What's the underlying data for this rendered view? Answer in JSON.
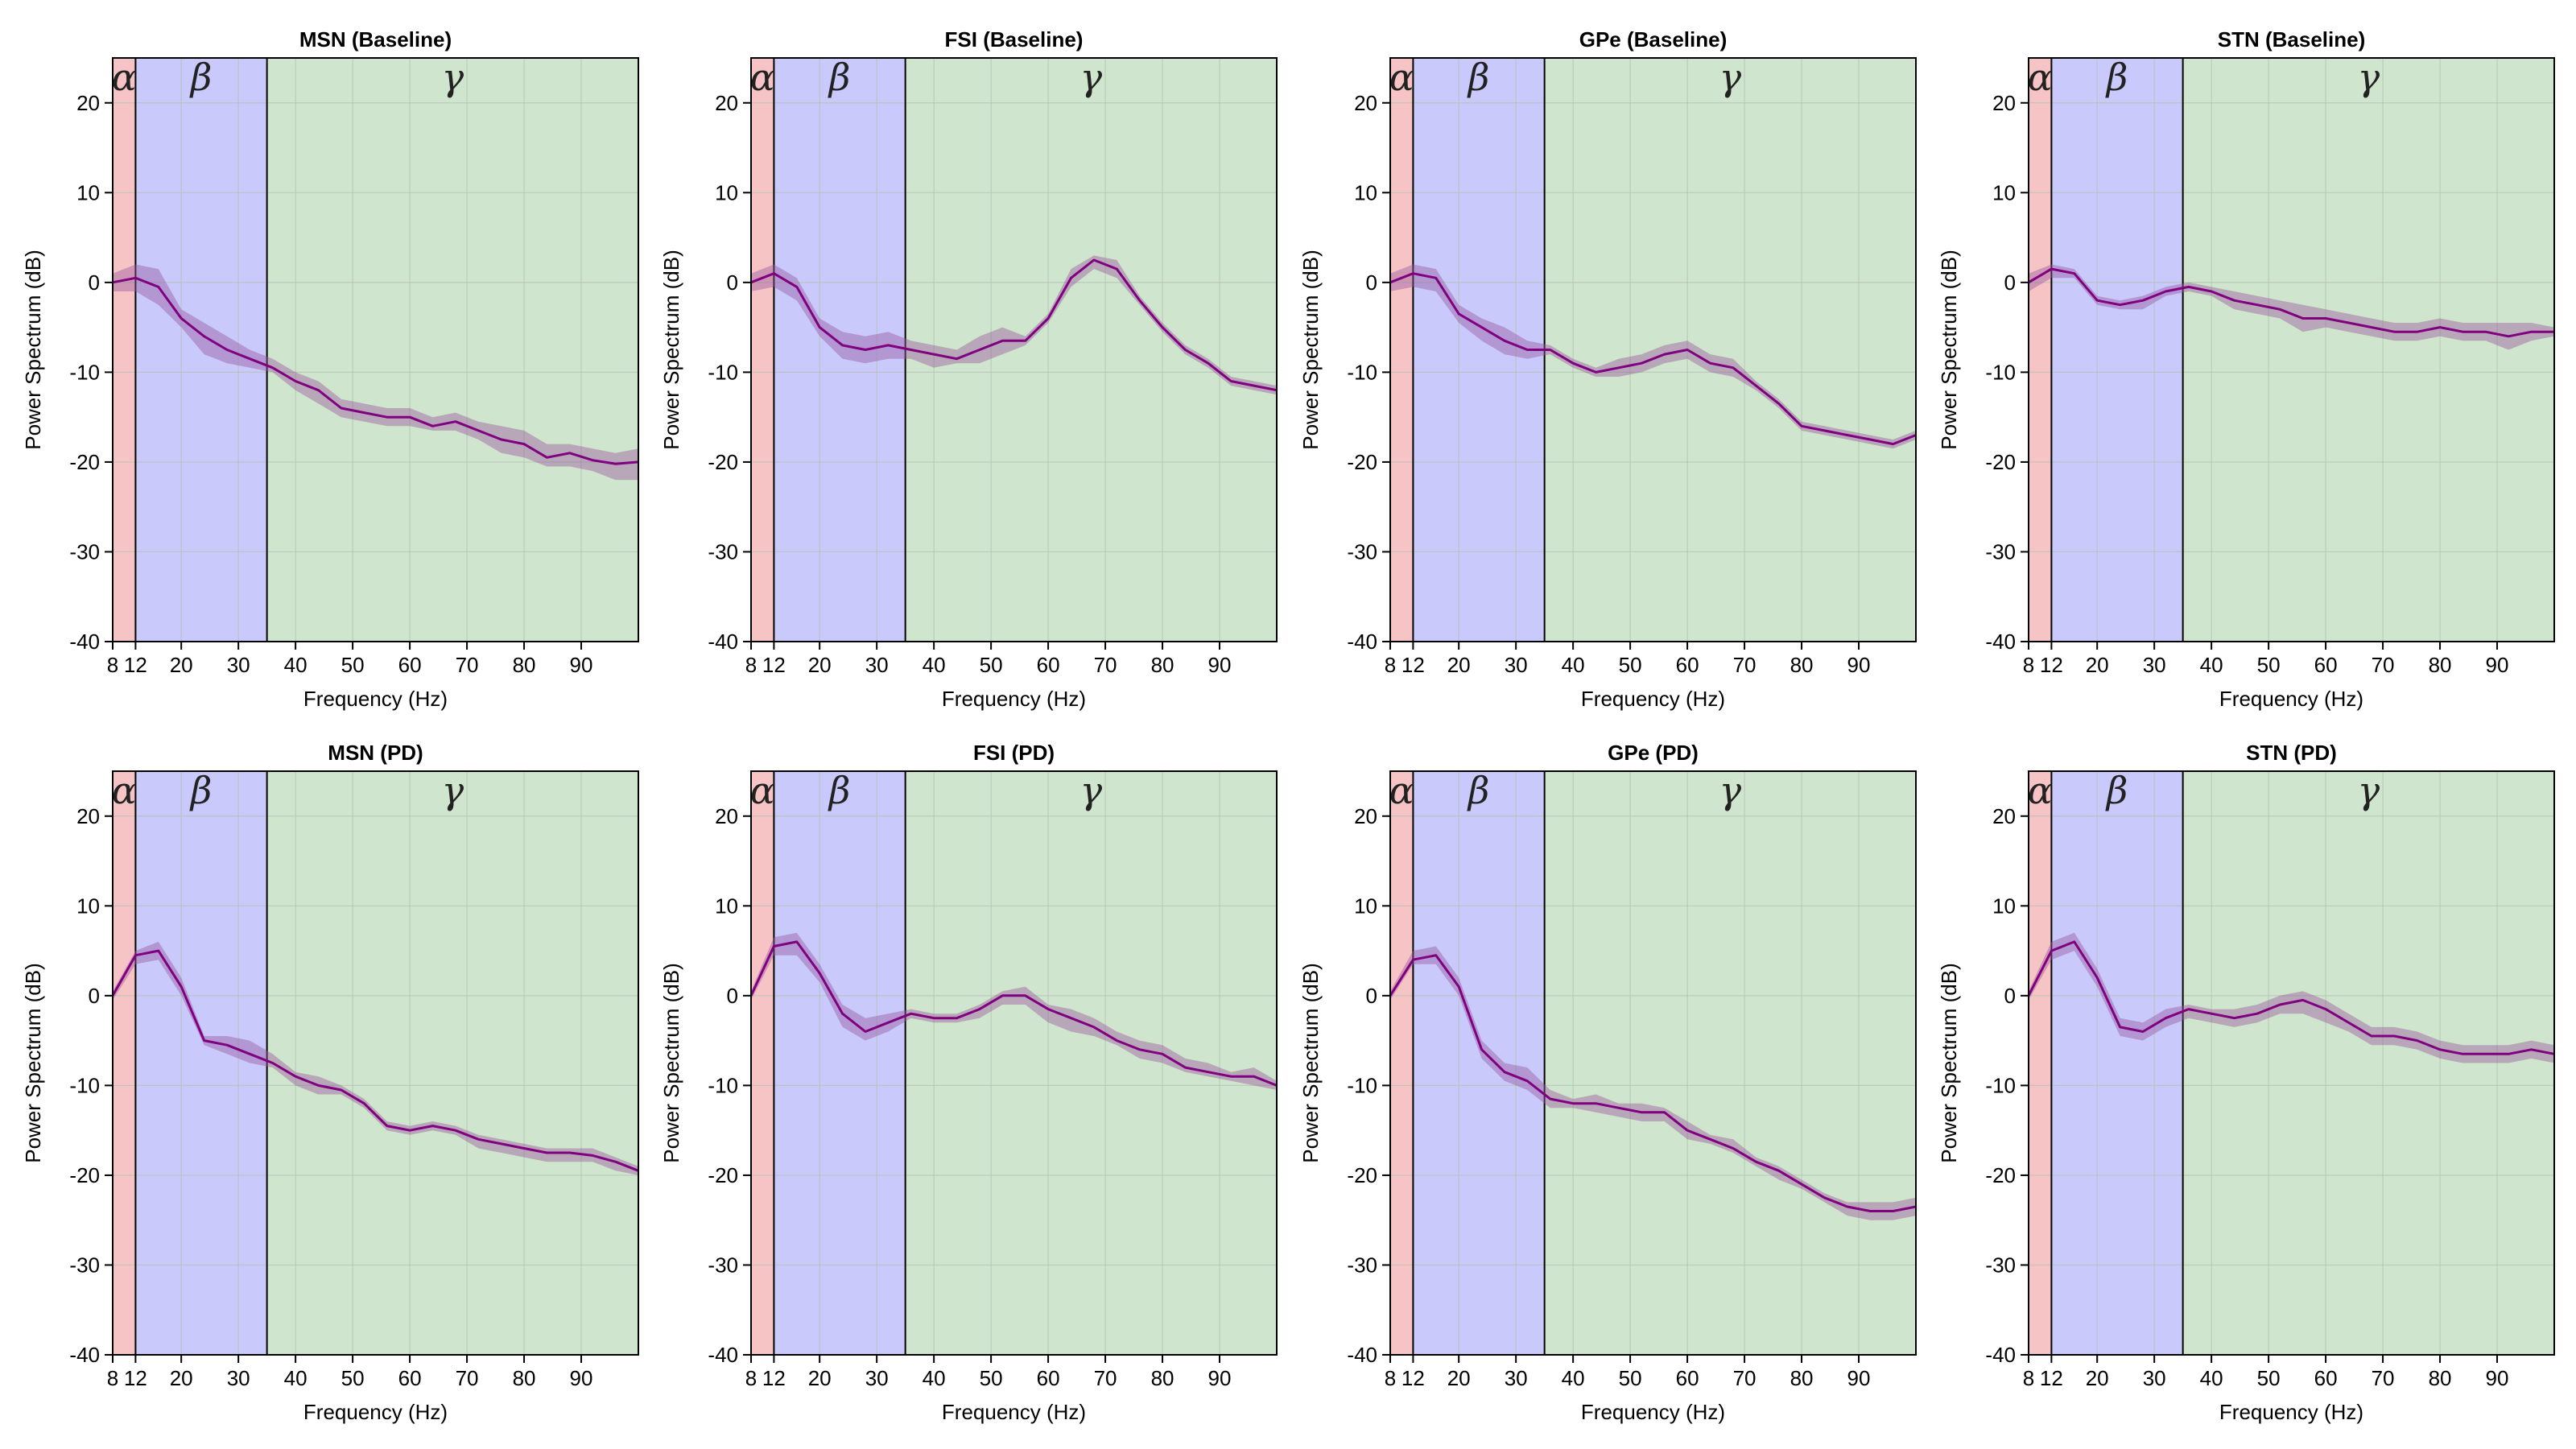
{
  "colors": {
    "alpha_band": "#f7c4c6",
    "beta_band": "#c9c9fb",
    "gamma_band": "#cfe5cd",
    "line": "#800080",
    "ci_fill": "#9a5aa0",
    "grid": "#b2c2b2"
  },
  "chart_data": [
    {
      "type": "line",
      "title": "MSN (Baseline)",
      "xlabel": "Frequency (Hz)",
      "ylabel": "Power Spectrum (dB)",
      "xlim": [
        8,
        100
      ],
      "ylim": [
        -40,
        25
      ],
      "xticks": [
        8,
        12,
        20,
        30,
        40,
        50,
        60,
        70,
        80,
        90
      ],
      "yticks": [
        -40,
        -30,
        -20,
        -10,
        0,
        10,
        20
      ],
      "grid": true,
      "bands": [
        {
          "label": "α",
          "from": 8,
          "to": 12
        },
        {
          "label": "β",
          "from": 12,
          "to": 35
        },
        {
          "label": "γ",
          "from": 35,
          "to": 100
        }
      ],
      "x": [
        8,
        12,
        16,
        20,
        24,
        28,
        32,
        36,
        40,
        44,
        48,
        52,
        56,
        60,
        64,
        68,
        72,
        76,
        80,
        84,
        88,
        92,
        96,
        100
      ],
      "y": [
        0,
        0.5,
        -0.5,
        -4,
        -6,
        -7.5,
        -8.5,
        -9.5,
        -11,
        -12,
        -14,
        -14.5,
        -15,
        -15,
        -16,
        -15.5,
        -16.5,
        -17.5,
        -18,
        -19.5,
        -19,
        -19.8,
        -20.2,
        -20
      ],
      "ci_lower": [
        -1,
        -1,
        -2.5,
        -5,
        -8,
        -9,
        -9.5,
        -10,
        -12,
        -13.5,
        -15,
        -15.5,
        -16,
        -16,
        -16.5,
        -16.5,
        -17.5,
        -19,
        -19.5,
        -20.5,
        -20.5,
        -21,
        -22,
        -22
      ],
      "ci_upper": [
        1,
        2,
        1.5,
        -3,
        -4.5,
        -6,
        -7.5,
        -8.5,
        -10,
        -11,
        -13,
        -13.5,
        -14,
        -14,
        -15,
        -14.5,
        -15.5,
        -16,
        -16.5,
        -18,
        -18,
        -18.5,
        -19,
        -18.5
      ]
    },
    {
      "type": "line",
      "title": "FSI (Baseline)",
      "xlabel": "Frequency (Hz)",
      "ylabel": "Power Spectrum (dB)",
      "xlim": [
        8,
        100
      ],
      "ylim": [
        -40,
        25
      ],
      "xticks": [
        8,
        12,
        20,
        30,
        40,
        50,
        60,
        70,
        80,
        90
      ],
      "yticks": [
        -40,
        -30,
        -20,
        -10,
        0,
        10,
        20
      ],
      "grid": true,
      "bands": [
        {
          "label": "α",
          "from": 8,
          "to": 12
        },
        {
          "label": "β",
          "from": 12,
          "to": 35
        },
        {
          "label": "γ",
          "from": 35,
          "to": 100
        }
      ],
      "x": [
        8,
        12,
        16,
        20,
        24,
        28,
        32,
        36,
        40,
        44,
        48,
        52,
        56,
        60,
        64,
        68,
        72,
        76,
        80,
        84,
        88,
        92,
        96,
        100
      ],
      "y": [
        0,
        1,
        -0.5,
        -5,
        -7,
        -7.5,
        -7,
        -7.5,
        -8,
        -8.5,
        -7.5,
        -6.5,
        -6.5,
        -4,
        0.5,
        2.5,
        1.5,
        -2,
        -5,
        -7.5,
        -9,
        -11,
        -11.5,
        -12
      ],
      "ci_lower": [
        -1,
        -0.5,
        -2,
        -6,
        -8.5,
        -9,
        -8.5,
        -8.5,
        -9.5,
        -9,
        -9,
        -8,
        -7,
        -4.5,
        -0.5,
        1.5,
        0.5,
        -2.5,
        -5.5,
        -8,
        -9.5,
        -11.5,
        -12,
        -12.5
      ],
      "ci_upper": [
        1,
        2,
        0.5,
        -4,
        -5.5,
        -6,
        -5.5,
        -6.5,
        -7,
        -7.5,
        -6,
        -5,
        -6,
        -3.5,
        1.5,
        3,
        2.5,
        -1.5,
        -4.5,
        -7,
        -8.5,
        -10.5,
        -11,
        -11.5
      ]
    },
    {
      "type": "line",
      "title": "GPe (Baseline)",
      "xlabel": "Frequency (Hz)",
      "ylabel": "Power Spectrum (dB)",
      "xlim": [
        8,
        100
      ],
      "ylim": [
        -40,
        25
      ],
      "xticks": [
        8,
        12,
        20,
        30,
        40,
        50,
        60,
        70,
        80,
        90
      ],
      "yticks": [
        -40,
        -30,
        -20,
        -10,
        0,
        10,
        20
      ],
      "grid": true,
      "bands": [
        {
          "label": "α",
          "from": 8,
          "to": 12
        },
        {
          "label": "β",
          "from": 12,
          "to": 35
        },
        {
          "label": "γ",
          "from": 35,
          "to": 100
        }
      ],
      "x": [
        8,
        12,
        16,
        20,
        24,
        28,
        32,
        36,
        40,
        44,
        48,
        52,
        56,
        60,
        64,
        68,
        72,
        76,
        80,
        84,
        88,
        92,
        96,
        100
      ],
      "y": [
        0,
        1,
        0.5,
        -3.5,
        -5,
        -6.5,
        -7.5,
        -7.5,
        -9,
        -10,
        -9.5,
        -9,
        -8,
        -7.5,
        -9,
        -9.5,
        -11.5,
        -13.5,
        -16,
        -16.5,
        -17,
        -17.5,
        -18,
        -17
      ],
      "ci_lower": [
        -1,
        -0.5,
        -1,
        -4.5,
        -6.5,
        -8,
        -8.5,
        -8,
        -9.5,
        -10.5,
        -10.5,
        -10,
        -9,
        -8.5,
        -10,
        -10.5,
        -12,
        -14,
        -16.5,
        -17,
        -17.5,
        -18,
        -18.5,
        -17.5
      ],
      "ci_upper": [
        1,
        2,
        1.5,
        -2.5,
        -4,
        -5,
        -6.5,
        -7,
        -8.5,
        -9.5,
        -8.5,
        -8,
        -7,
        -6.5,
        -8,
        -8.5,
        -11,
        -13,
        -15.5,
        -16,
        -16.5,
        -17,
        -17.5,
        -16.5
      ]
    },
    {
      "type": "line",
      "title": "STN (Baseline)",
      "xlabel": "Frequency (Hz)",
      "ylabel": "Power Spectrum (dB)",
      "xlim": [
        8,
        100
      ],
      "ylim": [
        -40,
        25
      ],
      "xticks": [
        8,
        12,
        20,
        30,
        40,
        50,
        60,
        70,
        80,
        90
      ],
      "yticks": [
        -40,
        -30,
        -20,
        -10,
        0,
        10,
        20
      ],
      "grid": true,
      "bands": [
        {
          "label": "α",
          "from": 8,
          "to": 12
        },
        {
          "label": "β",
          "from": 12,
          "to": 35
        },
        {
          "label": "γ",
          "from": 35,
          "to": 100
        }
      ],
      "x": [
        8,
        12,
        16,
        20,
        24,
        28,
        32,
        36,
        40,
        44,
        48,
        52,
        56,
        60,
        64,
        68,
        72,
        76,
        80,
        84,
        88,
        92,
        96,
        100
      ],
      "y": [
        0,
        1.5,
        1,
        -2,
        -2.5,
        -2,
        -1,
        -0.5,
        -1,
        -2,
        -2.5,
        -3,
        -4,
        -4,
        -4.5,
        -5,
        -5.5,
        -5.5,
        -5,
        -5.5,
        -5.5,
        -6,
        -5.5,
        -5.5
      ],
      "ci_lower": [
        -1,
        0.5,
        0.5,
        -2.5,
        -3,
        -3,
        -1.5,
        -1,
        -1.5,
        -3,
        -3.5,
        -4,
        -5.5,
        -5,
        -5.5,
        -6,
        -6.5,
        -6.5,
        -6,
        -6.5,
        -6.5,
        -7.5,
        -6.5,
        -6
      ],
      "ci_upper": [
        1,
        2,
        1.5,
        -1.5,
        -2,
        -1.5,
        -0.5,
        0,
        -0.5,
        -1,
        -1.5,
        -2,
        -2.5,
        -3,
        -3.5,
        -4,
        -4.5,
        -4.5,
        -4,
        -4.5,
        -4.5,
        -4.5,
        -4.5,
        -5
      ]
    },
    {
      "type": "line",
      "title": "MSN (PD)",
      "xlabel": "Frequency (Hz)",
      "ylabel": "Power Spectrum (dB)",
      "xlim": [
        8,
        100
      ],
      "ylim": [
        -40,
        25
      ],
      "xticks": [
        8,
        12,
        20,
        30,
        40,
        50,
        60,
        70,
        80,
        90
      ],
      "yticks": [
        -40,
        -30,
        -20,
        -10,
        0,
        10,
        20
      ],
      "grid": true,
      "bands": [
        {
          "label": "α",
          "from": 8,
          "to": 12
        },
        {
          "label": "β",
          "from": 12,
          "to": 35
        },
        {
          "label": "γ",
          "from": 35,
          "to": 100
        }
      ],
      "x": [
        8,
        12,
        16,
        20,
        24,
        28,
        32,
        36,
        40,
        44,
        48,
        52,
        56,
        60,
        64,
        68,
        72,
        76,
        80,
        84,
        88,
        92,
        96,
        100
      ],
      "y": [
        0,
        4.5,
        5,
        1,
        -5,
        -5.5,
        -6.5,
        -7.5,
        -9,
        -10,
        -10.5,
        -12,
        -14.5,
        -15,
        -14.5,
        -15,
        -16,
        -16.5,
        -17,
        -17.5,
        -17.5,
        -17.8,
        -18.5,
        -19.5
      ],
      "ci_lower": [
        -0.5,
        3.5,
        4,
        0,
        -5.5,
        -6.5,
        -7.5,
        -8,
        -10,
        -11,
        -11,
        -12.5,
        -15,
        -15.5,
        -15,
        -15.5,
        -17,
        -17.5,
        -18,
        -18.5,
        -18.5,
        -18.5,
        -19.5,
        -20
      ],
      "ci_upper": [
        0.5,
        5,
        6,
        2,
        -4.5,
        -4.5,
        -5,
        -6.5,
        -8.5,
        -9,
        -10,
        -11.5,
        -14,
        -14.5,
        -14,
        -14.5,
        -15.5,
        -16,
        -16.5,
        -17,
        -17,
        -17,
        -18,
        -19
      ]
    },
    {
      "type": "line",
      "title": "FSI (PD)",
      "xlabel": "Frequency (Hz)",
      "ylabel": "Power Spectrum (dB)",
      "xlim": [
        8,
        100
      ],
      "ylim": [
        -40,
        25
      ],
      "xticks": [
        8,
        12,
        20,
        30,
        40,
        50,
        60,
        70,
        80,
        90
      ],
      "yticks": [
        -40,
        -30,
        -20,
        -10,
        0,
        10,
        20
      ],
      "grid": true,
      "bands": [
        {
          "label": "α",
          "from": 8,
          "to": 12
        },
        {
          "label": "β",
          "from": 12,
          "to": 35
        },
        {
          "label": "γ",
          "from": 35,
          "to": 100
        }
      ],
      "x": [
        8,
        12,
        16,
        20,
        24,
        28,
        32,
        36,
        40,
        44,
        48,
        52,
        56,
        60,
        64,
        68,
        72,
        76,
        80,
        84,
        88,
        92,
        96,
        100
      ],
      "y": [
        0,
        5.5,
        6,
        2.5,
        -2,
        -4,
        -3,
        -2,
        -2.5,
        -2.5,
        -1.5,
        0,
        0,
        -1.5,
        -2.5,
        -3.5,
        -5,
        -6,
        -6.5,
        -8,
        -8.5,
        -9,
        -9,
        -10
      ],
      "ci_lower": [
        -0.5,
        4.5,
        4.5,
        1.5,
        -3.5,
        -5,
        -4,
        -2.5,
        -3,
        -3,
        -2.5,
        -1,
        -1,
        -3,
        -4,
        -4.5,
        -5.5,
        -7,
        -7.5,
        -8.5,
        -9,
        -9.5,
        -10,
        -10.5
      ],
      "ci_upper": [
        0.5,
        6.5,
        7,
        3.5,
        -1,
        -2.5,
        -2,
        -1.5,
        -2,
        -2,
        -1,
        0.5,
        1,
        -1,
        -1.5,
        -2.5,
        -4,
        -5,
        -5.5,
        -7,
        -7.5,
        -8.5,
        -8,
        -9.5
      ]
    },
    {
      "type": "line",
      "title": "GPe (PD)",
      "xlabel": "Frequency (Hz)",
      "ylabel": "Power Spectrum (dB)",
      "xlim": [
        8,
        100
      ],
      "ylim": [
        -40,
        25
      ],
      "xticks": [
        8,
        12,
        20,
        30,
        40,
        50,
        60,
        70,
        80,
        90
      ],
      "yticks": [
        -40,
        -30,
        -20,
        -10,
        0,
        10,
        20
      ],
      "grid": true,
      "bands": [
        {
          "label": "α",
          "from": 8,
          "to": 12
        },
        {
          "label": "β",
          "from": 12,
          "to": 35
        },
        {
          "label": "γ",
          "from": 35,
          "to": 100
        }
      ],
      "x": [
        8,
        12,
        16,
        20,
        24,
        28,
        32,
        36,
        40,
        44,
        48,
        52,
        56,
        60,
        64,
        68,
        72,
        76,
        80,
        84,
        88,
        92,
        96,
        100
      ],
      "y": [
        0,
        4,
        4.5,
        1,
        -6,
        -8.5,
        -9.5,
        -11.5,
        -12,
        -12,
        -12.5,
        -13,
        -13,
        -15,
        -16,
        -17,
        -18.5,
        -19.5,
        -21,
        -22.5,
        -23.5,
        -24,
        -24,
        -23.5
      ],
      "ci_lower": [
        -0.5,
        3.5,
        3.5,
        0,
        -7,
        -9.5,
        -10.5,
        -12.5,
        -12.5,
        -13,
        -13.5,
        -14,
        -14,
        -16,
        -16.5,
        -17.5,
        -19,
        -20.5,
        -21.5,
        -23,
        -24.5,
        -25,
        -25,
        -24.5
      ],
      "ci_upper": [
        0.5,
        5,
        5.5,
        2,
        -5,
        -7.5,
        -8,
        -10.5,
        -11.5,
        -11,
        -12,
        -12,
        -12.5,
        -14,
        -15.5,
        -16,
        -18,
        -19,
        -20.5,
        -22,
        -23,
        -23,
        -23,
        -22.5
      ]
    },
    {
      "type": "line",
      "title": "STN (PD)",
      "xlabel": "Frequency (Hz)",
      "ylabel": "Power Spectrum (dB)",
      "xlim": [
        8,
        100
      ],
      "ylim": [
        -40,
        25
      ],
      "xticks": [
        8,
        12,
        20,
        30,
        40,
        50,
        60,
        70,
        80,
        90
      ],
      "yticks": [
        -40,
        -30,
        -20,
        -10,
        0,
        10,
        20
      ],
      "grid": true,
      "bands": [
        {
          "label": "α",
          "from": 8,
          "to": 12
        },
        {
          "label": "β",
          "from": 12,
          "to": 35
        },
        {
          "label": "γ",
          "from": 35,
          "to": 100
        }
      ],
      "x": [
        8,
        12,
        16,
        20,
        24,
        28,
        32,
        36,
        40,
        44,
        48,
        52,
        56,
        60,
        64,
        68,
        72,
        76,
        80,
        84,
        88,
        92,
        96,
        100
      ],
      "y": [
        0,
        5,
        6,
        2,
        -3.5,
        -4,
        -2.5,
        -1.5,
        -2,
        -2.5,
        -2,
        -1,
        -0.5,
        -1.5,
        -3,
        -4.5,
        -4.5,
        -5,
        -6,
        -6.5,
        -6.5,
        -6.5,
        -6,
        -6.5
      ],
      "ci_lower": [
        -0.5,
        4,
        5,
        1,
        -4.5,
        -5,
        -3.5,
        -2.5,
        -3,
        -3.5,
        -3,
        -2,
        -2,
        -3,
        -4,
        -5.5,
        -5.5,
        -6,
        -7,
        -7.5,
        -7.5,
        -7.5,
        -7,
        -7.5
      ],
      "ci_upper": [
        0.5,
        6,
        7,
        3,
        -2.5,
        -3,
        -1.5,
        -1,
        -1.5,
        -1.5,
        -1,
        0,
        0.5,
        -0.5,
        -2,
        -3.5,
        -3.5,
        -4,
        -5,
        -5.5,
        -5.5,
        -5.5,
        -5,
        -5.5
      ]
    }
  ]
}
